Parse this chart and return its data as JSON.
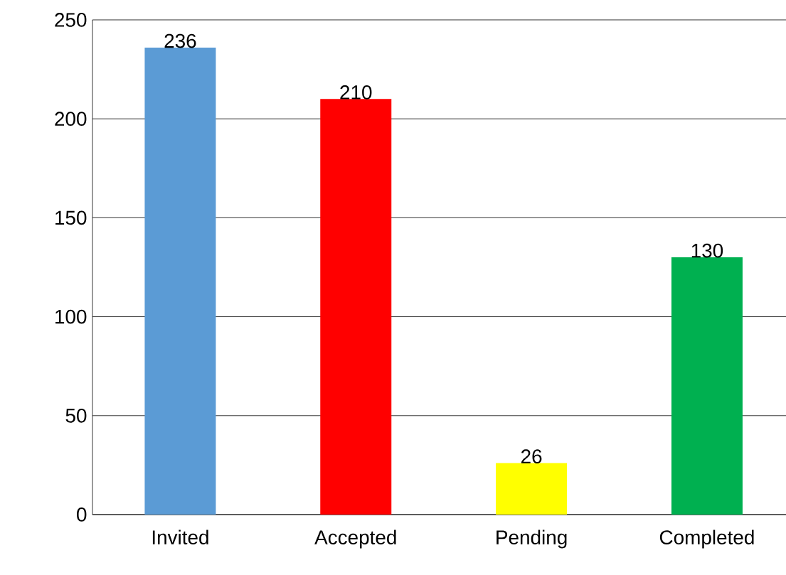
{
  "chart_data": {
    "type": "bar",
    "categories": [
      "Invited",
      "Accepted",
      "Pending",
      "Completed"
    ],
    "values": [
      236,
      210,
      26,
      130
    ],
    "colors": [
      "#5b9bd5",
      "#ff0000",
      "#ffff00",
      "#00b050"
    ],
    "ylim": [
      0,
      250
    ],
    "yticks": [
      0,
      50,
      100,
      150,
      200,
      250
    ],
    "grid": "y",
    "data_labels": true
  }
}
